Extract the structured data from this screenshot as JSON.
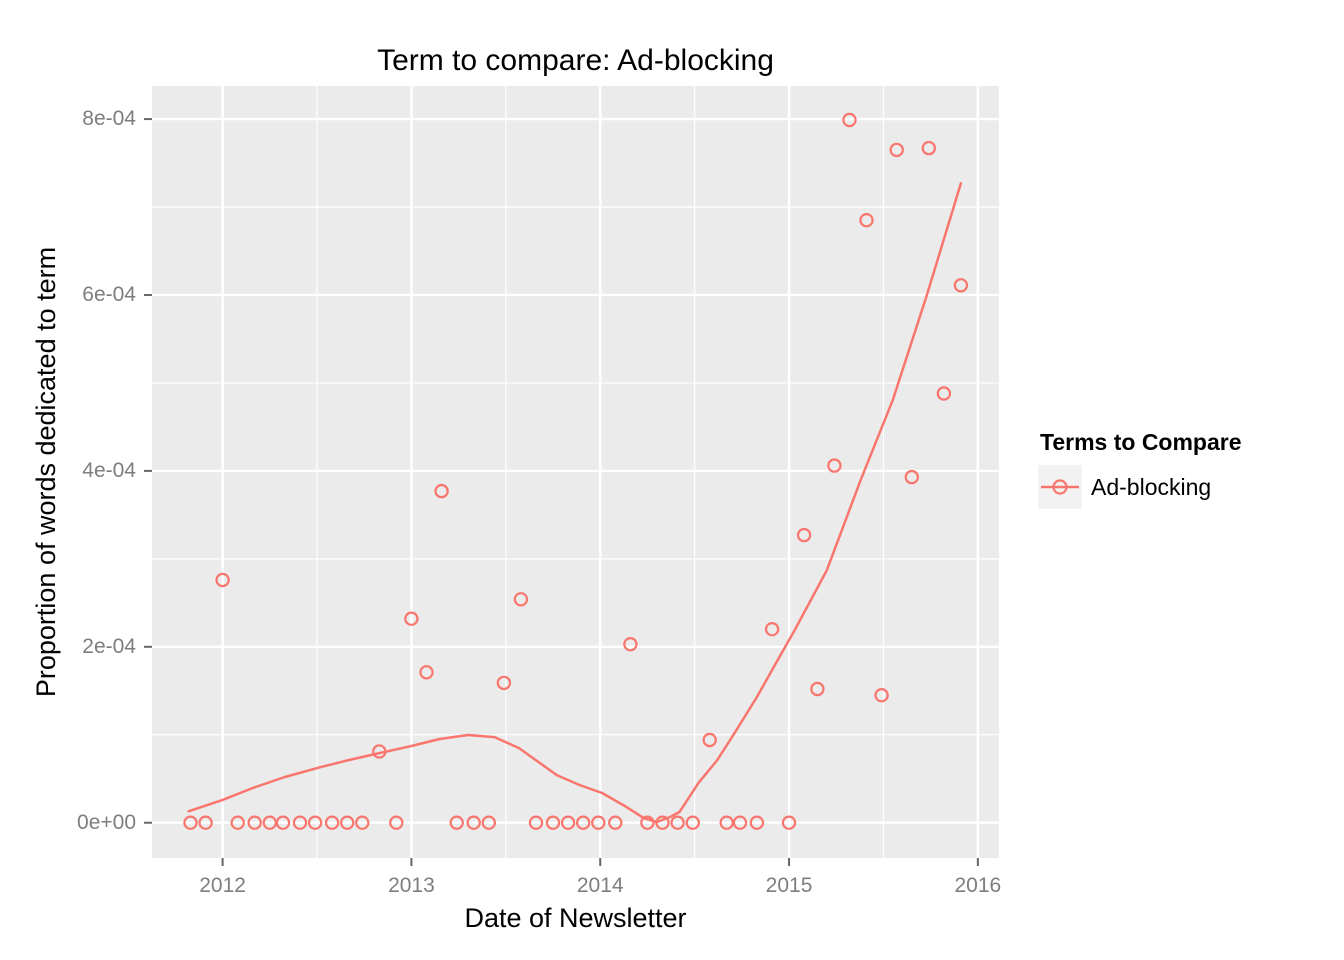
{
  "figure": {
    "title": "Term to compare: Ad-blocking"
  },
  "legend": {
    "title": "Terms to Compare",
    "items": [
      {
        "label": "Ad-blocking",
        "color": "#F8766D",
        "key": "line-with-open-circle"
      }
    ]
  },
  "colors": {
    "series": "#F8766D",
    "panel_background": "#EBEBEB",
    "gridline": "#FFFFFF",
    "axis_text": "#7E7E7E",
    "axis_tick": "#666666",
    "title_text": "#000000",
    "legend_key_background": "#F2F2F2",
    "figure_background": "#FFFFFF"
  },
  "chart_data": {
    "type": "scatter",
    "title": "Term to compare: Ad-blocking",
    "xlabel": "Date of Newsletter",
    "ylabel": "Proportion of words dedicated to term",
    "xlim": [
      2011.626,
      2016.112
    ],
    "ylim": [
      -4.01e-05,
      0.0008376
    ],
    "grid": true,
    "legend_position": "right",
    "x_ticks": [
      2012,
      2013,
      2014,
      2015,
      2016
    ],
    "x_tick_labels": [
      "2012",
      "2013",
      "2014",
      "2015",
      "2016"
    ],
    "y_ticks": [
      0,
      0.0002,
      0.0004,
      0.0006,
      0.0008
    ],
    "y_tick_labels": [
      "0e+00",
      "2e-04",
      "4e-04",
      "6e-04",
      "8e-04"
    ],
    "series": [
      {
        "name": "Ad-blocking",
        "role": "points",
        "marker": "open-circle",
        "points": [
          [
            2011.83,
            0
          ],
          [
            2011.91,
            0
          ],
          [
            2012.0,
            0.000276
          ],
          [
            2012.08,
            0
          ],
          [
            2012.17,
            0
          ],
          [
            2012.25,
            0
          ],
          [
            2012.32,
            0
          ],
          [
            2012.41,
            0
          ],
          [
            2012.49,
            0
          ],
          [
            2012.58,
            0
          ],
          [
            2012.66,
            0
          ],
          [
            2012.74,
            0
          ],
          [
            2012.83,
            8.1e-05
          ],
          [
            2012.92,
            0
          ],
          [
            2013.0,
            0.000232
          ],
          [
            2013.08,
            0.000171
          ],
          [
            2013.16,
            0.000377
          ],
          [
            2013.24,
            0
          ],
          [
            2013.33,
            0
          ],
          [
            2013.41,
            0
          ],
          [
            2013.49,
            0.000159
          ],
          [
            2013.58,
            0.000254
          ],
          [
            2013.66,
            0
          ],
          [
            2013.75,
            0
          ],
          [
            2013.83,
            0
          ],
          [
            2013.91,
            0
          ],
          [
            2013.99,
            0
          ],
          [
            2014.08,
            0
          ],
          [
            2014.16,
            0.000203
          ],
          [
            2014.25,
            0
          ],
          [
            2014.33,
            0
          ],
          [
            2014.41,
            0
          ],
          [
            2014.49,
            0
          ],
          [
            2014.58,
            9.4e-05
          ],
          [
            2014.67,
            0
          ],
          [
            2014.74,
            0
          ],
          [
            2014.83,
            0
          ],
          [
            2014.91,
            0.00022
          ],
          [
            2015.0,
            0
          ],
          [
            2015.08,
            0.000327
          ],
          [
            2015.15,
            0.000152
          ],
          [
            2015.24,
            0.000406
          ],
          [
            2015.32,
            0.000799
          ],
          [
            2015.41,
            0.000685
          ],
          [
            2015.49,
            0.000145
          ],
          [
            2015.57,
            0.000765
          ],
          [
            2015.65,
            0.000393
          ],
          [
            2015.74,
            0.000767
          ],
          [
            2015.82,
            0.000488
          ],
          [
            2015.91,
            0.000611
          ]
        ]
      },
      {
        "name": "Ad-blocking (loess smooth)",
        "role": "line",
        "points": [
          [
            2011.82,
            1.3e-05
          ],
          [
            2012.0,
            2.6e-05
          ],
          [
            2012.16,
            3.95e-05
          ],
          [
            2012.33,
            5.2e-05
          ],
          [
            2012.52,
            6.33e-05
          ],
          [
            2012.67,
            7.13e-05
          ],
          [
            2012.83,
            7.92e-05
          ],
          [
            2013.0,
            8.72e-05
          ],
          [
            2013.15,
            9.52e-05
          ],
          [
            2013.3,
            9.97e-05
          ],
          [
            2013.44,
            9.74e-05
          ],
          [
            2013.57,
            8.49e-05
          ],
          [
            2013.77,
            5.42e-05
          ],
          [
            2013.89,
            4.29e-05
          ],
          [
            2014.01,
            3.38e-05
          ],
          [
            2014.13,
            1.9e-05
          ],
          [
            2014.23,
            5.3e-06
          ],
          [
            2014.3,
            8e-07
          ],
          [
            2014.37,
            6.5e-06
          ],
          [
            2014.42,
            1.22e-05
          ],
          [
            2014.52,
            4.51e-05
          ],
          [
            2014.62,
            7.13e-05
          ],
          [
            2014.72,
            0.000105
          ],
          [
            2014.83,
            0.000143
          ],
          [
            2014.94,
            0.000185
          ],
          [
            2015.03,
            0.000219
          ],
          [
            2015.2,
            0.000287
          ],
          [
            2015.38,
            0.00039
          ],
          [
            2015.55,
            0.000481
          ],
          [
            2015.73,
            0.0006
          ],
          [
            2015.91,
            0.000727
          ]
        ]
      }
    ]
  }
}
